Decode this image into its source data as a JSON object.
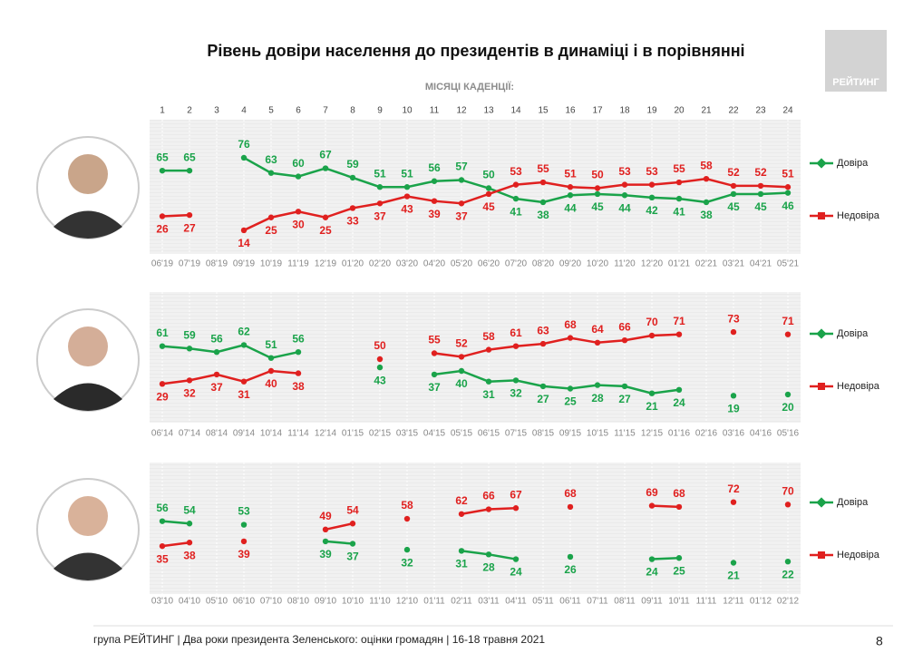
{
  "title": "Рівень довіри населення до президентів в динаміці і в порівнянні",
  "cadence_label": "МІСЯЦІ КАДЕНЦІЇ:",
  "months": [
    1,
    2,
    3,
    4,
    5,
    6,
    7,
    8,
    9,
    10,
    11,
    12,
    13,
    14,
    15,
    16,
    17,
    18,
    19,
    20,
    21,
    22,
    23,
    24
  ],
  "logo": "РЕЙТИНГ",
  "footer": "група РЕЙТИНГ | Два роки президента Зеленського: оцінки громадян  | 16-18 травня 2021",
  "page_number": 8,
  "chart_data": [
    {
      "type": "line",
      "categories": [
        "06'19",
        "07'19",
        "08'19",
        "09'19",
        "10'19",
        "11'19",
        "12'19",
        "01'20",
        "02'20",
        "03'20",
        "04'20",
        "05'20",
        "06'20",
        "07'20",
        "08'20",
        "09'20",
        "10'20",
        "11'20",
        "12'20",
        "01'21",
        "02'21",
        "03'21",
        "04'21",
        "05'21"
      ],
      "series": [
        {
          "name": "Довіра",
          "color": "#1aa34a",
          "values": [
            65,
            65,
            null,
            76,
            63,
            60,
            67,
            59,
            51,
            51,
            56,
            57,
            50,
            41,
            38,
            44,
            45,
            44,
            42,
            41,
            38,
            45,
            45,
            46
          ]
        },
        {
          "name": "Недовіра",
          "color": "#e0201f",
          "values": [
            26,
            27,
            null,
            14,
            25,
            30,
            25,
            33,
            37,
            43,
            39,
            37,
            45,
            53,
            55,
            51,
            50,
            53,
            53,
            55,
            58,
            52,
            52,
            51
          ]
        }
      ],
      "ylim": [
        0,
        100
      ]
    },
    {
      "type": "line",
      "categories": [
        "06'14",
        "07'14",
        "08'14",
        "09'14",
        "10'14",
        "11'14",
        "12'14",
        "01'15",
        "02'15",
        "03'15",
        "04'15",
        "05'15",
        "06'15",
        "07'15",
        "08'15",
        "09'15",
        "10'15",
        "11'15",
        "12'15",
        "01'16",
        "02'16",
        "03'16",
        "04'16",
        "05'16"
      ],
      "series": [
        {
          "name": "Довіра",
          "color": "#1aa34a",
          "values": [
            61,
            59,
            56,
            62,
            51,
            56,
            null,
            null,
            43,
            null,
            37,
            40,
            31,
            32,
            27,
            25,
            28,
            27,
            21,
            24,
            null,
            19,
            null,
            20
          ]
        },
        {
          "name": "Недовіра",
          "color": "#e0201f",
          "values": [
            29,
            32,
            37,
            31,
            40,
            38,
            null,
            null,
            50,
            null,
            55,
            52,
            58,
            61,
            63,
            68,
            64,
            66,
            70,
            71,
            null,
            73,
            null,
            71
          ]
        }
      ],
      "ylim": [
        0,
        100
      ]
    },
    {
      "type": "line",
      "categories": [
        "03'10",
        "04'10",
        "05'10",
        "06'10",
        "07'10",
        "08'10",
        "09'10",
        "10'10",
        "11'10",
        "12'10",
        "01'11",
        "02'11",
        "03'11",
        "04'11",
        "05'11",
        "06'11",
        "07'11",
        "08'11",
        "09'11",
        "10'11",
        "11'11",
        "12'11",
        "01'12",
        "02'12"
      ],
      "series": [
        {
          "name": "Довіра",
          "color": "#1aa34a",
          "values": [
            56,
            54,
            null,
            53,
            null,
            null,
            39,
            37,
            null,
            32,
            null,
            31,
            28,
            24,
            null,
            26,
            null,
            null,
            24,
            25,
            null,
            21,
            null,
            22
          ]
        },
        {
          "name": "Недовіра",
          "color": "#e0201f",
          "values": [
            35,
            38,
            null,
            39,
            null,
            null,
            49,
            54,
            null,
            58,
            null,
            62,
            66,
            67,
            null,
            68,
            null,
            null,
            69,
            68,
            null,
            72,
            null,
            70
          ]
        }
      ],
      "ylim": [
        0,
        100
      ]
    }
  ]
}
